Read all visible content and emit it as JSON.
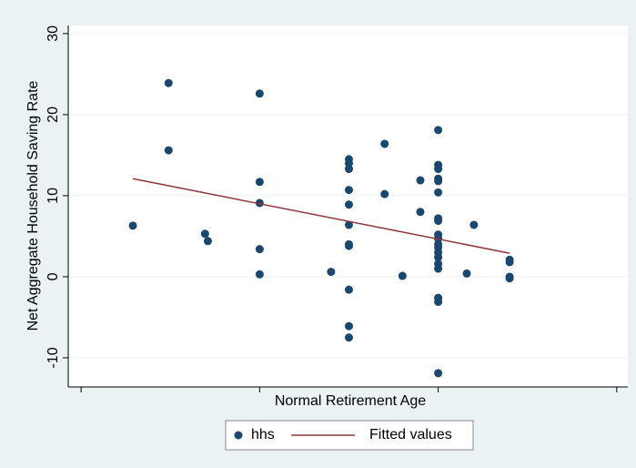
{
  "chart_data": {
    "type": "scatter",
    "ylabel": "Net Aggregate Household Saving Rate",
    "xlabel": "Normal Retirement Age",
    "xlim": [
      54.64,
      70.31
    ],
    "xticks": [
      55,
      60,
      65,
      70
    ],
    "ylim": [
      -13.6,
      31
    ],
    "yticks": [
      -10,
      0,
      10,
      20,
      30
    ],
    "grid": true,
    "legend": "bottom",
    "series": [
      {
        "name": "hhs",
        "type": "scatter",
        "color": "#1a476f",
        "x": [
          56.45,
          57.45,
          57.45,
          58.47,
          58.55,
          60,
          60,
          60,
          60,
          60,
          62,
          62.5,
          62.5,
          62.5,
          62.5,
          62.5,
          62.5,
          62.5,
          62.5,
          62.5,
          62.5,
          62.5,
          63.5,
          63.5,
          64,
          64.5,
          64.5,
          65,
          65,
          65,
          65,
          65,
          65,
          65,
          65,
          65,
          65,
          65,
          65,
          65,
          65,
          65,
          65,
          65,
          65,
          65,
          65.8,
          66,
          67,
          67,
          67,
          67
        ],
        "values": [
          6.3,
          23.9,
          15.6,
          5.3,
          4.4,
          22.6,
          11.7,
          9.1,
          3.4,
          0.3,
          0.6,
          14.5,
          14.0,
          13.3,
          10.7,
          8.9,
          6.4,
          4.0,
          3.8,
          -1.6,
          -6.1,
          -7.5,
          16.4,
          10.2,
          0.1,
          11.9,
          8.0,
          18.1,
          13.8,
          13.3,
          12.1,
          11.8,
          10.4,
          7.2,
          6.9,
          5.2,
          4.7,
          4.0,
          3.6,
          3.0,
          2.4,
          1.6,
          1.0,
          -2.6,
          -3.1,
          -11.9,
          0.4,
          6.4,
          2.1,
          1.8,
          0.0,
          -0.2
        ]
      },
      {
        "name": "Fitted values",
        "type": "line",
        "color": "#90353b",
        "x": [
          56.45,
          67
        ],
        "values": [
          12.1,
          2.9
        ]
      }
    ]
  }
}
